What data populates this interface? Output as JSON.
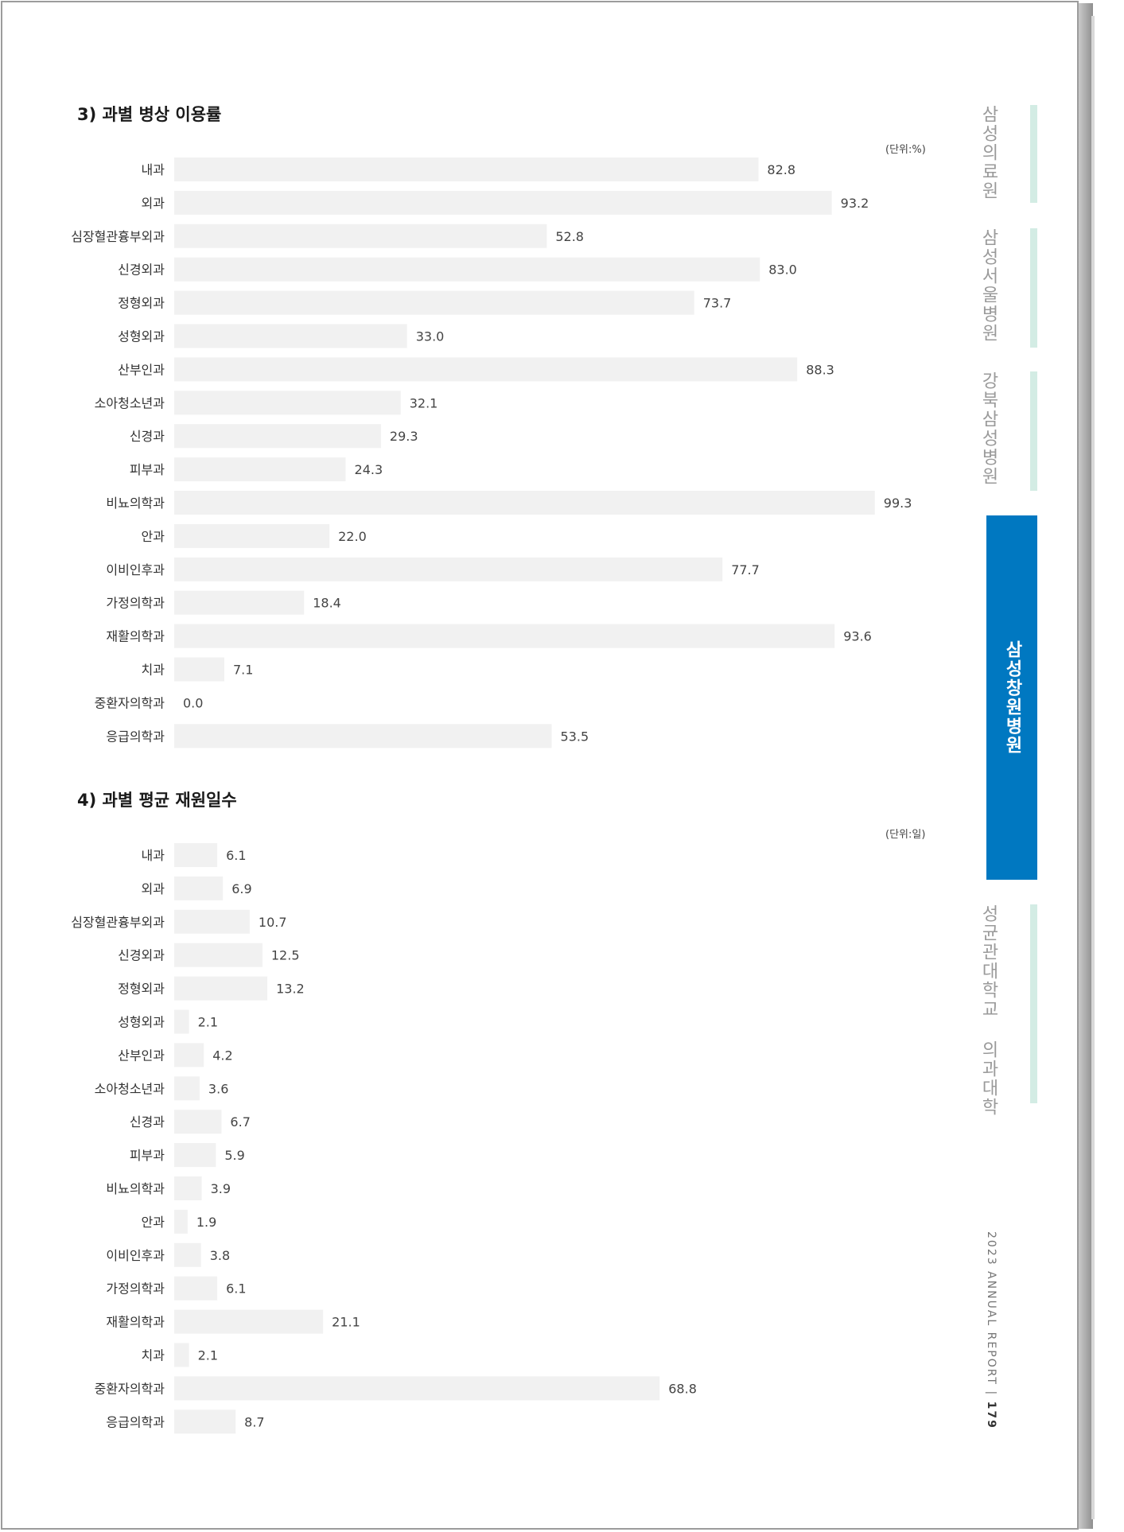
{
  "chart_data": [
    {
      "type": "bar",
      "orientation": "horizontal",
      "title": "3) 과별 병상 이용률",
      "unit": "(단위:%)",
      "categories": [
        "내과",
        "외과",
        "심장혈관흉부외과",
        "신경외과",
        "정형외과",
        "성형외과",
        "산부인과",
        "소아청소년과",
        "신경과",
        "피부과",
        "비뇨의학과",
        "안과",
        "이비인후과",
        "가정의학과",
        "재활의학과",
        "치과",
        "중환자의학과",
        "응급의학과"
      ],
      "values": [
        82.8,
        93.2,
        52.8,
        83.0,
        73.7,
        33.0,
        88.3,
        32.1,
        29.3,
        24.3,
        99.3,
        22.0,
        77.7,
        18.4,
        93.6,
        7.1,
        0.0,
        53.5
      ],
      "value_labels": [
        "82.8",
        "93.2",
        "52.8",
        "83.0",
        "73.7",
        "33.0",
        "88.3",
        "32.1",
        "29.3",
        "24.3",
        "99.3",
        "22.0",
        "77.7",
        "18.4",
        "93.6",
        "7.1",
        "0.0",
        "53.5"
      ],
      "xlim": [
        0,
        100
      ],
      "bar_color": "#f1f1f1",
      "grid": false
    },
    {
      "type": "bar",
      "orientation": "horizontal",
      "title": "4) 과별 평균 재원일수",
      "unit": "(단위:일)",
      "categories": [
        "내과",
        "외과",
        "심장혈관흉부외과",
        "신경외과",
        "정형외과",
        "성형외과",
        "산부인과",
        "소아청소년과",
        "신경과",
        "피부과",
        "비뇨의학과",
        "안과",
        "이비인후과",
        "가정의학과",
        "재활의학과",
        "치과",
        "중환자의학과",
        "응급의학과"
      ],
      "values": [
        6.1,
        6.9,
        10.7,
        12.5,
        13.2,
        2.1,
        4.2,
        3.6,
        6.7,
        5.9,
        3.9,
        1.9,
        3.8,
        6.1,
        21.1,
        2.1,
        68.8,
        8.7
      ],
      "value_labels": [
        "6.1",
        "6.9",
        "10.7",
        "12.5",
        "13.2",
        "2.1",
        "4.2",
        "3.6",
        "6.7",
        "5.9",
        "3.9",
        "1.9",
        "3.8",
        "6.1",
        "21.1",
        "2.1",
        "68.8",
        "8.7"
      ],
      "xlim": [
        0,
        100
      ],
      "bar_color": "#f1f1f1",
      "grid": false
    }
  ],
  "side_nav": {
    "tabs": [
      "삼성의료원",
      "삼성서울병원",
      "강북삼성병원",
      "삼성창원병원",
      "성균관대학교 의과대학"
    ],
    "active_index": 3,
    "active_color": "#0078c1",
    "inactive_line_color": "#d3ece4"
  },
  "footer": {
    "report": "2023 ANNUAL REPORT",
    "separator": "|",
    "page_number": "179"
  }
}
